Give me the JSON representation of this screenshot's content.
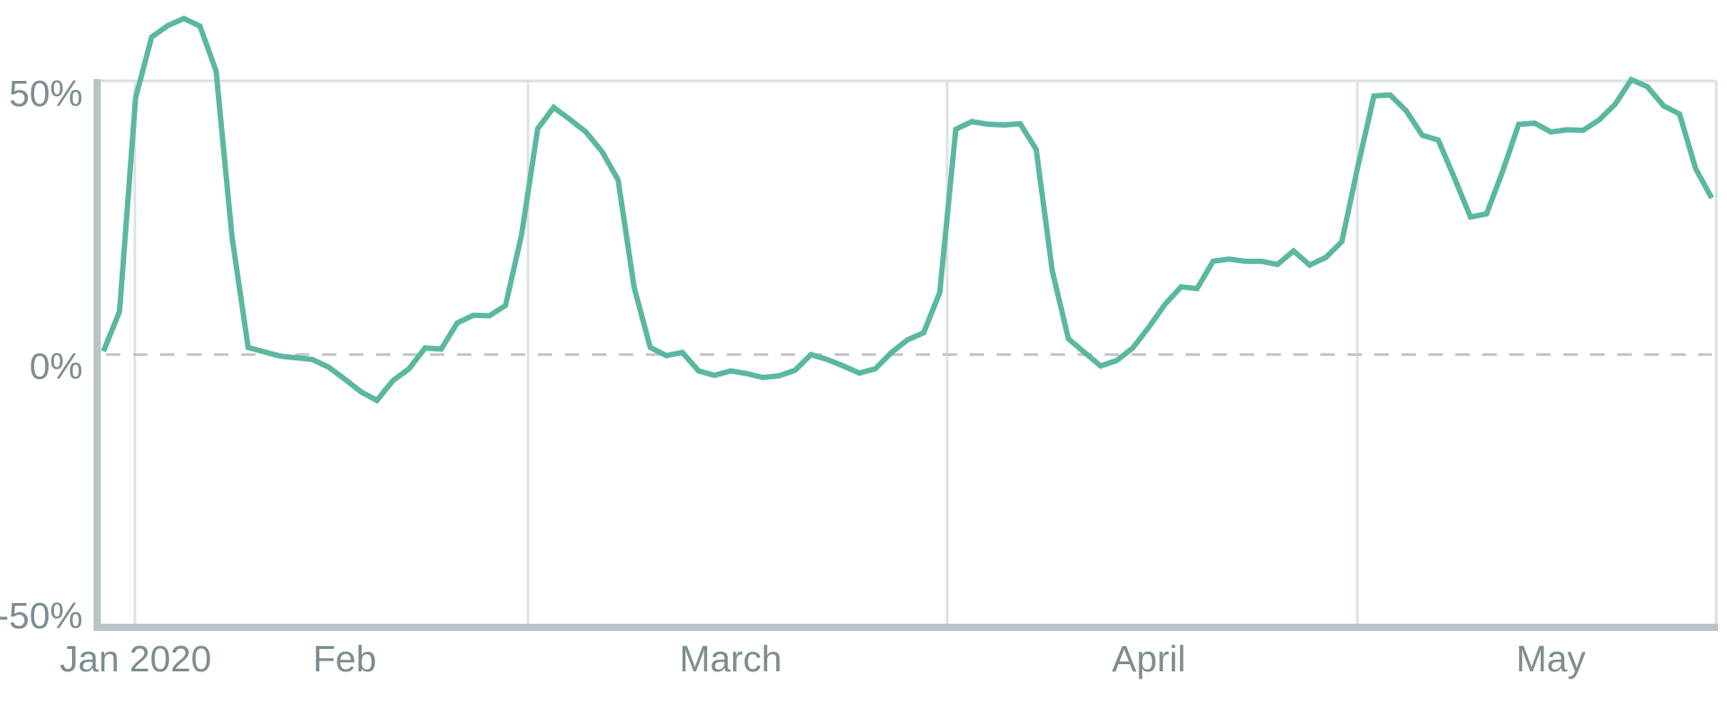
{
  "chart_data": {
    "type": "line",
    "categories": [
      null,
      null,
      "Jan 2020",
      null,
      null,
      null,
      null,
      null,
      null,
      null,
      null,
      null,
      null,
      null,
      null,
      "Feb",
      null,
      null,
      null,
      null,
      null,
      null,
      null,
      null,
      null,
      null,
      null,
      null,
      null,
      null,
      null,
      null,
      null,
      null,
      null,
      null,
      null,
      null,
      null,
      "March",
      null,
      null,
      null,
      null,
      null,
      null,
      null,
      null,
      null,
      null,
      null,
      null,
      null,
      null,
      null,
      null,
      null,
      null,
      null,
      null,
      null,
      null,
      null,
      null,
      null,
      "April",
      null,
      null,
      null,
      null,
      null,
      null,
      null,
      null,
      null,
      null,
      null,
      null,
      null,
      null,
      null,
      null,
      null,
      null,
      null,
      null,
      null,
      null,
      null,
      null,
      "May",
      null,
      null,
      null,
      null,
      null,
      null,
      null,
      null,
      null,
      null
    ],
    "series": [
      {
        "color": "#5bb8a0",
        "values": [
          0.6,
          7.9,
          47.1,
          58.2,
          60.3,
          61.6,
          60.2,
          52,
          21.5,
          1.3,
          0.5,
          -0.3,
          -0.6,
          -0.9,
          -2.3,
          -4.5,
          -6.8,
          -8.4,
          -4.8,
          -2.6,
          1.2,
          1,
          5.8,
          7.2,
          7.1,
          9,
          22,
          41.4,
          45.3,
          43.1,
          40.8,
          37.2,
          32,
          12.3,
          1.3,
          -0.2,
          0.4,
          -3,
          -3.8,
          -3,
          -3.5,
          -4.2,
          -3.9,
          -2.9,
          0,
          -0.9,
          -2.1,
          -3.4,
          -2.6,
          0.4,
          2.7,
          4,
          11.4,
          41.3,
          42.7,
          42.2,
          42.1,
          42.3,
          37.6,
          15.3,
          2.9,
          0.4,
          -2.1,
          -1.1,
          1.2,
          5,
          9.2,
          12.4,
          12.1,
          17.1,
          17.5,
          17.1,
          17.1,
          16.5,
          19,
          16.4,
          17.8,
          20.7,
          34.5,
          47.4,
          47.6,
          44.7,
          40.2,
          39.3,
          32.4,
          25.2,
          25.8,
          33.6,
          42.2,
          42.4,
          40.8,
          41.2,
          41.1,
          43,
          45.9,
          50.4,
          49.1,
          45.6,
          44.1,
          34.1,
          28.7
        ]
      }
    ],
    "ylim": [
      -50,
      50
    ],
    "yticks": [
      {
        "value": 50,
        "label": "50%"
      },
      {
        "value": 0,
        "label": "0%"
      },
      {
        "value": -50,
        "label": "-50%"
      }
    ],
    "zero_line": true
  }
}
